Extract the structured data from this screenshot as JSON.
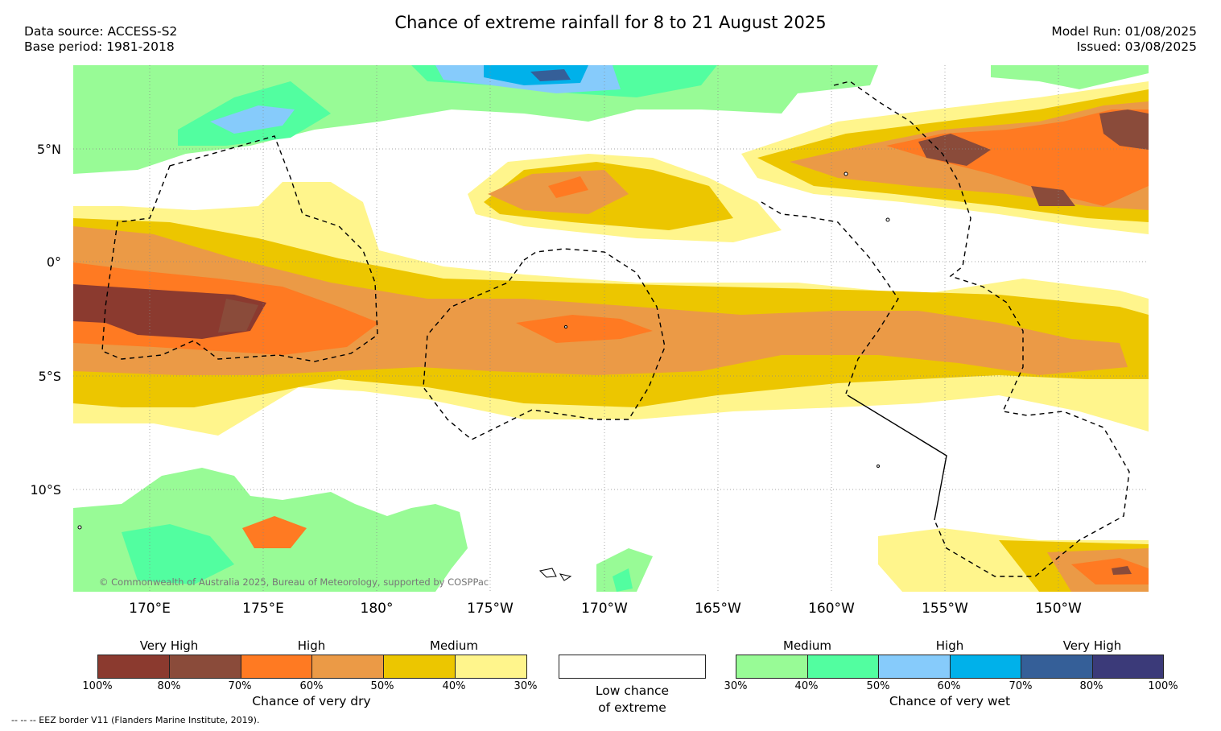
{
  "title": "Chance of extreme rainfall for 8 to 21 August 2025",
  "meta_left": {
    "source": "Data source: ACCESS-S2",
    "base": "Base period: 1981-2018"
  },
  "meta_right": {
    "model_run": "Model Run: 01/08/2025",
    "issued": "Issued: 03/08/2025"
  },
  "lat_labels": [
    "5°N",
    "0°",
    "5°S",
    "10°S"
  ],
  "lon_labels": [
    "170°E",
    "175°E",
    "180°",
    "175°W",
    "170°W",
    "165°W",
    "160°W",
    "155°W",
    "150°W"
  ],
  "copyright": "© Commonwealth of Australia 2025, Bureau of Meteorology, supported by COSPPac",
  "legend_dry": {
    "levels": [
      "Very High",
      "High",
      "Medium"
    ],
    "colors": [
      "#8b3a2f",
      "#8a4b3a",
      "#ff7a22",
      "#eb9a46",
      "#ecc600",
      "#fff58c"
    ],
    "ticks": [
      "100%",
      "80%",
      "70%",
      "60%",
      "50%",
      "40%",
      "30%"
    ],
    "caption": "Chance of very dry"
  },
  "legend_low": {
    "line1": "Low chance",
    "line2": "of extreme"
  },
  "legend_wet": {
    "levels": [
      "Medium",
      "High",
      "Very High"
    ],
    "colors": [
      "#98fb96",
      "#52fea0",
      "#86cbfb",
      "#00b1ea",
      "#355f98",
      "#3b3a79"
    ],
    "ticks": [
      "30%",
      "40%",
      "50%",
      "60%",
      "70%",
      "80%",
      "100%"
    ],
    "caption": "Chance of very wet"
  },
  "footnote": "-- -- -- EEZ border V11 (Flanders Marine Institute, 2019)."
}
